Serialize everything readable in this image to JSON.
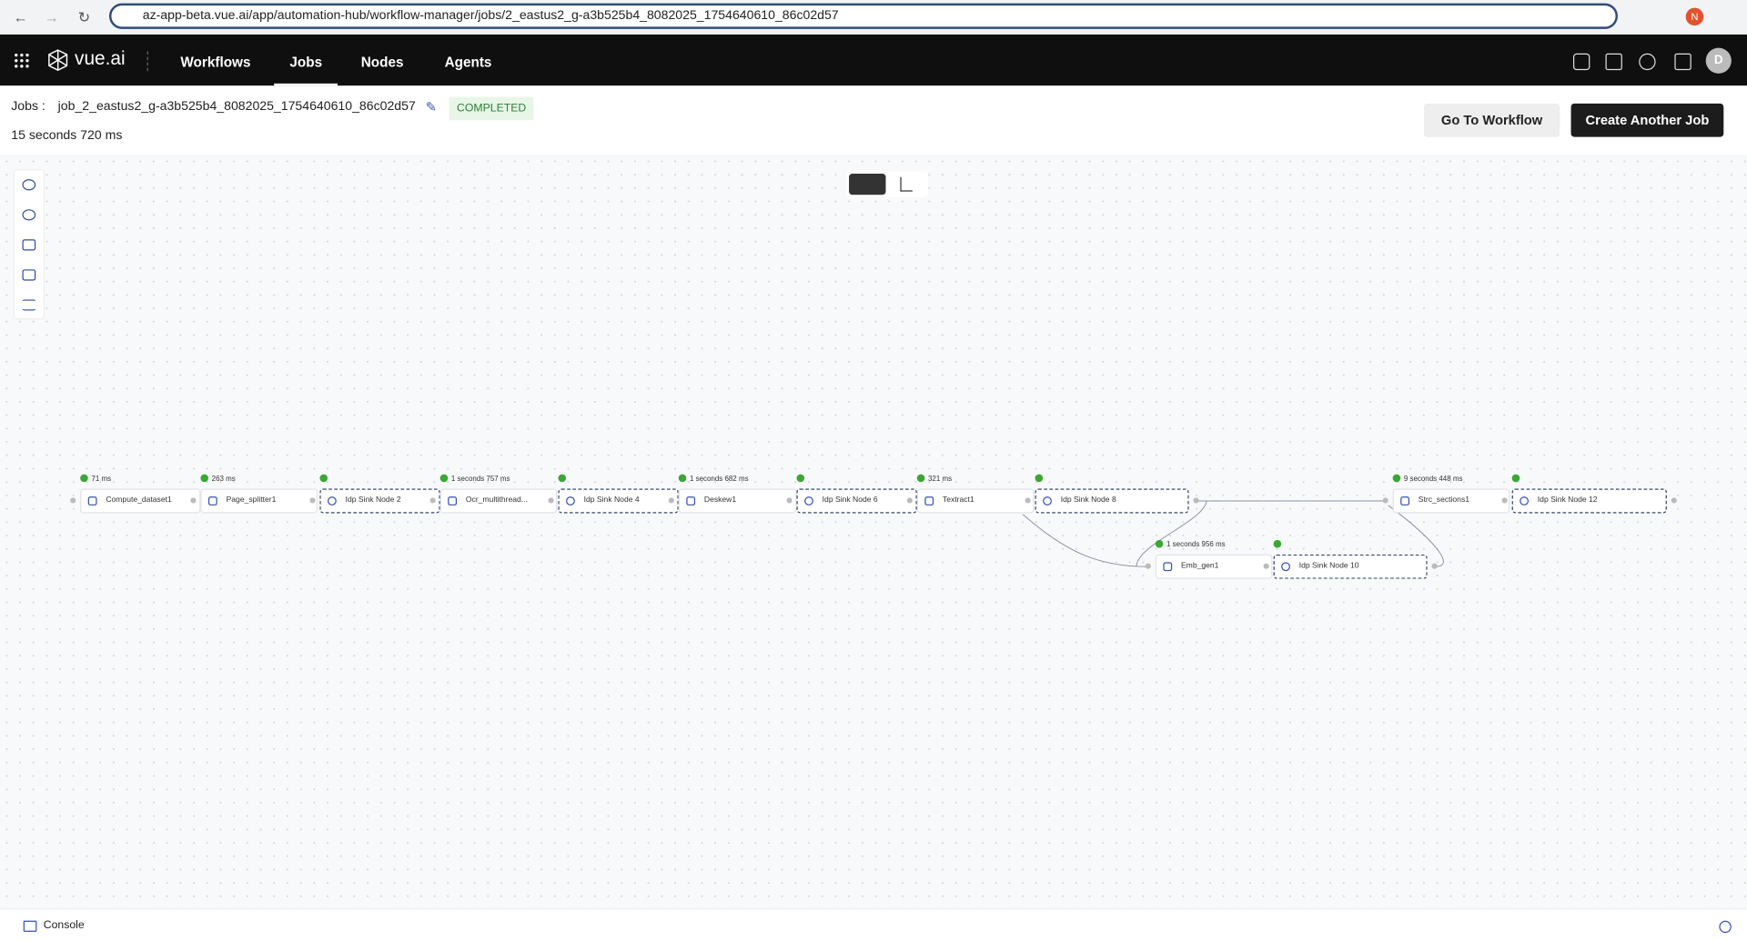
{
  "browser": {
    "url": "az-app-beta.vue.ai/app/automation-hub/workflow-manager/jobs/2_eastus2_g-a3b525b4_8082025_1754640610_86c02d57",
    "profile": "N"
  },
  "nav": {
    "logo": "vue.ai",
    "items": [
      "Workflows",
      "Jobs",
      "Nodes",
      "Agents"
    ],
    "active": "Jobs",
    "avatar": "D"
  },
  "job": {
    "label": "Jobs :",
    "name": "job_2_eastus2_g-a3b525b4_8082025_1754640610_86c02d57",
    "status": "COMPLETED",
    "duration": "15 seconds 720 ms",
    "buttons": [
      "Go To Workflow",
      "Create Another Job"
    ]
  },
  "nodes": [
    {
      "label": "Compute_dataset1",
      "time": "71 ms"
    },
    {
      "label": "Page_splitter1",
      "time": "263 ms"
    },
    {
      "label": "Idp Sink Node 2"
    },
    {
      "label": "Ocr_multithread...",
      "time": "1 seconds 757 ms"
    },
    {
      "label": "Idp Sink Node 4"
    },
    {
      "label": "Deskew1",
      "time": "1 seconds 682 ms"
    },
    {
      "label": "Idp Sink Node 6"
    },
    {
      "label": "Textract1",
      "time": "321 ms"
    },
    {
      "label": "Idp Sink Node 8"
    },
    {
      "label": "Emb_gen1",
      "time": "1 seconds 956 ms"
    },
    {
      "label": "Idp Sink Node 10"
    },
    {
      "label": "Strc_sections1",
      "time": "9 seconds 448 ms"
    },
    {
      "label": "Idp Sink Node 12"
    }
  ],
  "footer": {
    "console": "Console"
  }
}
